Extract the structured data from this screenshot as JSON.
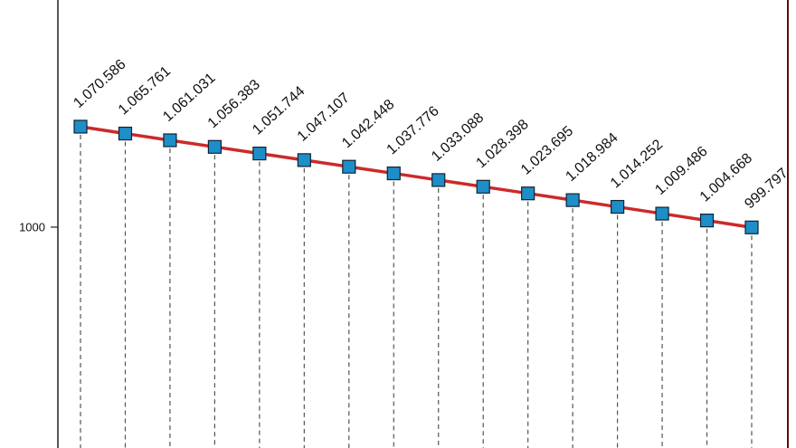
{
  "chart_data": {
    "type": "line",
    "categories": [
      null,
      null,
      null,
      null,
      null,
      null,
      null,
      null,
      null,
      null,
      null,
      null,
      null,
      null,
      null,
      null
    ],
    "series": [
      {
        "color": "#cc2a2a",
        "marker_color": "#1e8ec8",
        "values": [
          1070.586,
          1065.761,
          1061.031,
          1056.383,
          1051.744,
          1047.107,
          1042.448,
          1037.776,
          1033.088,
          1028.398,
          1023.695,
          1018.984,
          1014.252,
          1009.486,
          1004.668,
          999.797
        ],
        "value_labels": [
          "1.070.586",
          "1.065.761",
          "1.061.031",
          "1.056.383",
          "1.051.744",
          "1.047.107",
          "1.042.448",
          "1.037.776",
          "1.033.088",
          "1.028.398",
          "1.023.695",
          "1.018.984",
          "1.014.252",
          "1.009.486",
          "1.004.668",
          "999.797"
        ]
      }
    ],
    "ylim": [
      844.8,
      1159.6
    ],
    "yticks": [
      1000
    ]
  }
}
